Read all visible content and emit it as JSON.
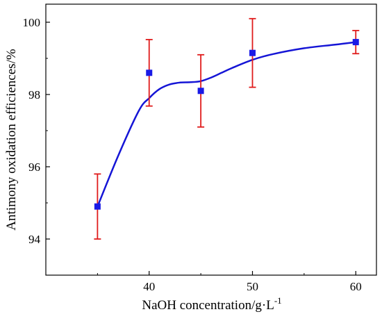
{
  "colors": {
    "curve": "#1515d6",
    "error_bar": "#e01b1b",
    "point": "#1a1ae6",
    "axis": "#000000"
  },
  "chart_data": {
    "type": "scatter",
    "title": "",
    "xlabel": "NaOH concentration/g·L",
    "xlabel_superscript": "-1",
    "ylabel": "Antimony oxidation efficiences/%",
    "xlim": [
      30,
      62
    ],
    "ylim": [
      93,
      100.5
    ],
    "x_ticks": [
      40,
      50,
      60
    ],
    "x_tick_labels": [
      "40",
      "50",
      "60"
    ],
    "y_ticks": [
      94,
      96,
      98,
      100
    ],
    "y_tick_labels": [
      "94",
      "96",
      "98",
      "100"
    ],
    "grid": false,
    "legend": "none",
    "series": [
      {
        "x": [
          35,
          40,
          45,
          50,
          60
        ],
        "y": [
          94.9,
          98.6,
          98.1,
          99.15,
          99.45
        ],
        "error": [
          0.9,
          0.92,
          1.0,
          0.95,
          0.32
        ]
      }
    ],
    "fit_curve": {
      "x": [
        35,
        37,
        39,
        40,
        41,
        42,
        43,
        44,
        45,
        46,
        47,
        48,
        50,
        52,
        55,
        58,
        60
      ],
      "y": [
        94.9,
        96.3,
        97.55,
        97.9,
        98.15,
        98.28,
        98.33,
        98.34,
        98.37,
        98.47,
        98.6,
        98.73,
        98.96,
        99.12,
        99.28,
        99.38,
        99.45
      ]
    }
  }
}
